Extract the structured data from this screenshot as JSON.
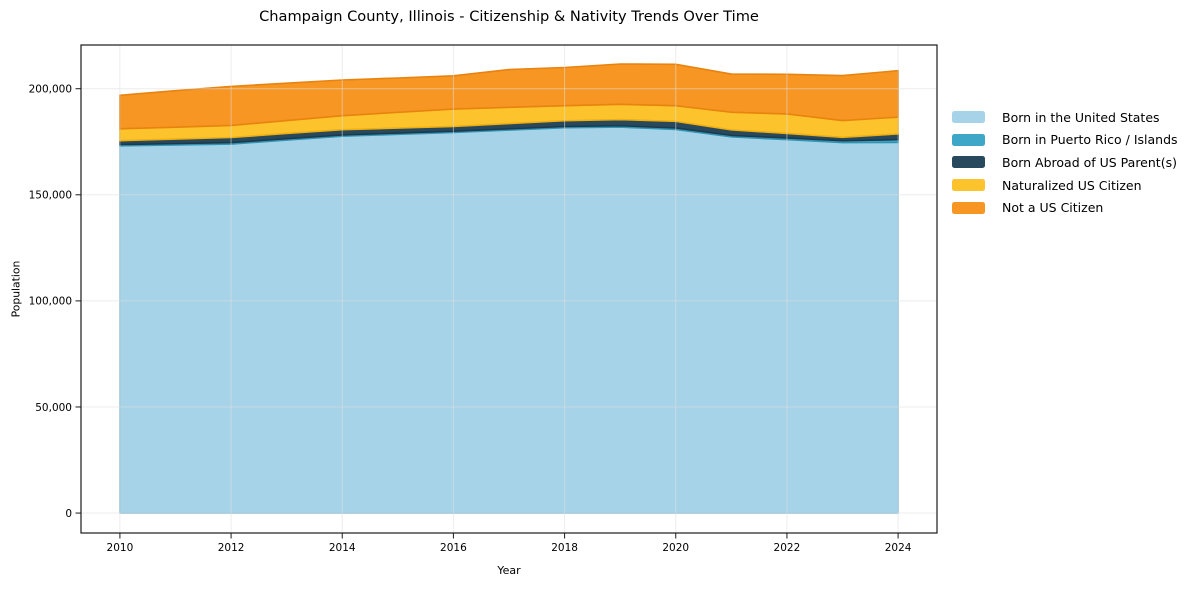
{
  "chart_data": {
    "type": "area",
    "stacked": true,
    "title": "Champaign County, Illinois - Citizenship & Nativity Trends Over Time",
    "xlabel": "Year",
    "ylabel": "Population",
    "grid": true,
    "legend_position": "right",
    "xlim": [
      2009.3,
      2024.7
    ],
    "ylim": [
      -9400,
      220600
    ],
    "x": [
      2010,
      2011,
      2012,
      2013,
      2014,
      2015,
      2016,
      2017,
      2018,
      2019,
      2020,
      2021,
      2022,
      2023,
      2024
    ],
    "x_tick_values": [
      2010,
      2012,
      2014,
      2016,
      2018,
      2020,
      2022,
      2024
    ],
    "x_tick_labels": [
      "2010",
      "2012",
      "2014",
      "2016",
      "2018",
      "2020",
      "2022",
      "2024"
    ],
    "y_tick_values": [
      0,
      50000,
      100000,
      150000,
      200000
    ],
    "y_tick_labels": [
      "0",
      "50,000",
      "100,000",
      "150,000",
      "200,000"
    ],
    "series": [
      {
        "name": "Born in the United States",
        "fill": "#a7d3e8",
        "edge": "#8cc3dc",
        "values": [
          173100,
          173500,
          173900,
          175800,
          177600,
          178500,
          179400,
          180500,
          181600,
          181900,
          180800,
          177300,
          176000,
          174600,
          174700
        ]
      },
      {
        "name": "Born in Puerto Rico / Islands",
        "fill": "#3ea7c7",
        "edge": "#3095b5",
        "values": [
          600,
          650,
          700,
          650,
          600,
          600,
          600,
          600,
          600,
          650,
          700,
          700,
          800,
          900,
          1300
        ]
      },
      {
        "name": "Born Abroad of US Parent(s)",
        "fill": "#28495d",
        "edge": "#1e3a4a",
        "values": [
          1800,
          2100,
          2400,
          2450,
          2500,
          2350,
          2200,
          2450,
          2700,
          2900,
          3100,
          2600,
          2100,
          1600,
          2700
        ]
      },
      {
        "name": "Naturalized US Citizen",
        "fill": "#fcc32d",
        "edge": "#efaf10",
        "values": [
          5600,
          5600,
          5700,
          6100,
          6600,
          7400,
          8200,
          7700,
          7100,
          7200,
          7400,
          8300,
          9200,
          7900,
          7900
        ]
      },
      {
        "name": "Not a US Citizen",
        "fill": "#f79622",
        "edge": "#e8830f",
        "values": [
          15800,
          17200,
          18400,
          17600,
          16800,
          16200,
          15700,
          17800,
          18000,
          19000,
          19500,
          18000,
          18700,
          21200,
          21900
        ]
      }
    ]
  }
}
